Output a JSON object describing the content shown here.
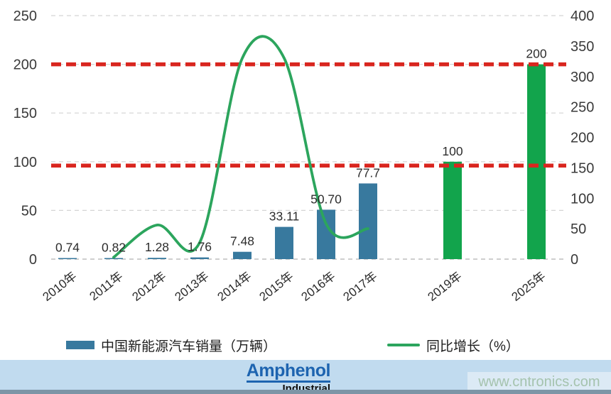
{
  "chart_data": {
    "type": "bar+line",
    "title": "",
    "categories": [
      "2010年",
      "2011年",
      "2012年",
      "2013年",
      "2014年",
      "2015年",
      "2016年",
      "2017年",
      "2019年",
      "2025年"
    ],
    "series": [
      {
        "name": "中国新能源汽车销量（万辆）",
        "type": "bar",
        "axis": "left",
        "values": [
          0.74,
          0.82,
          1.28,
          1.76,
          7.48,
          33.11,
          50.7,
          77.7,
          100,
          200
        ],
        "labels": [
          "0.74",
          "0.82",
          "1.28",
          "1.76",
          "7.48",
          "33.11",
          "50.70",
          "77.7",
          "100",
          "200"
        ],
        "colors": [
          "#38799e",
          "#38799e",
          "#38799e",
          "#38799e",
          "#38799e",
          "#38799e",
          "#38799e",
          "#38799e",
          "#12a44c",
          "#12a44c"
        ]
      },
      {
        "name": "同比增长（%）",
        "type": "line",
        "axis": "right",
        "categories": [
          "2011年",
          "2012年",
          "2013年",
          "2014年",
          "2015年",
          "2016年",
          "2017年"
        ],
        "values": [
          3,
          56,
          27,
          330,
          330,
          58,
          50
        ]
      }
    ],
    "left_axis": {
      "ticks": [
        0,
        50,
        100,
        150,
        200,
        250
      ],
      "max": 250
    },
    "right_axis": {
      "ticks": [
        0,
        50,
        100,
        150,
        200,
        250,
        300,
        350,
        400
      ],
      "max": 400
    },
    "reference_lines": [
      {
        "axis": "left",
        "value": 200,
        "style": "dashed",
        "color": "#d9261f"
      },
      {
        "axis": "left",
        "value": 96,
        "style": "dashed",
        "color": "#d9261f"
      }
    ],
    "legend": {
      "position": "bottom",
      "items": [
        {
          "label": "中国新能源汽车销量（万辆）",
          "marker": "bar-swatch",
          "color": "#38799e"
        },
        {
          "label": "同比增长（%）",
          "marker": "line-swatch",
          "color": "#2ca55d"
        }
      ]
    },
    "grid": "horizontal-dashed",
    "colors": {
      "bar_teal": "#38799e",
      "bar_green": "#12a44c",
      "line_green": "#2ca55d",
      "reference_red": "#d9261f",
      "gridline": "#d4d4d4",
      "axis_text": "#3a3a3a",
      "label_text": "#2d2d2d"
    }
  },
  "footer": {
    "brand_line1": "Amphenol",
    "brand_line2": "Industrial",
    "watermark": "www.cntronics.com",
    "band_color": "#c1dbef",
    "strip_color": "#7d95a6",
    "brand_color": "#1d64b0",
    "watermark_color": "#a5c3ae"
  }
}
